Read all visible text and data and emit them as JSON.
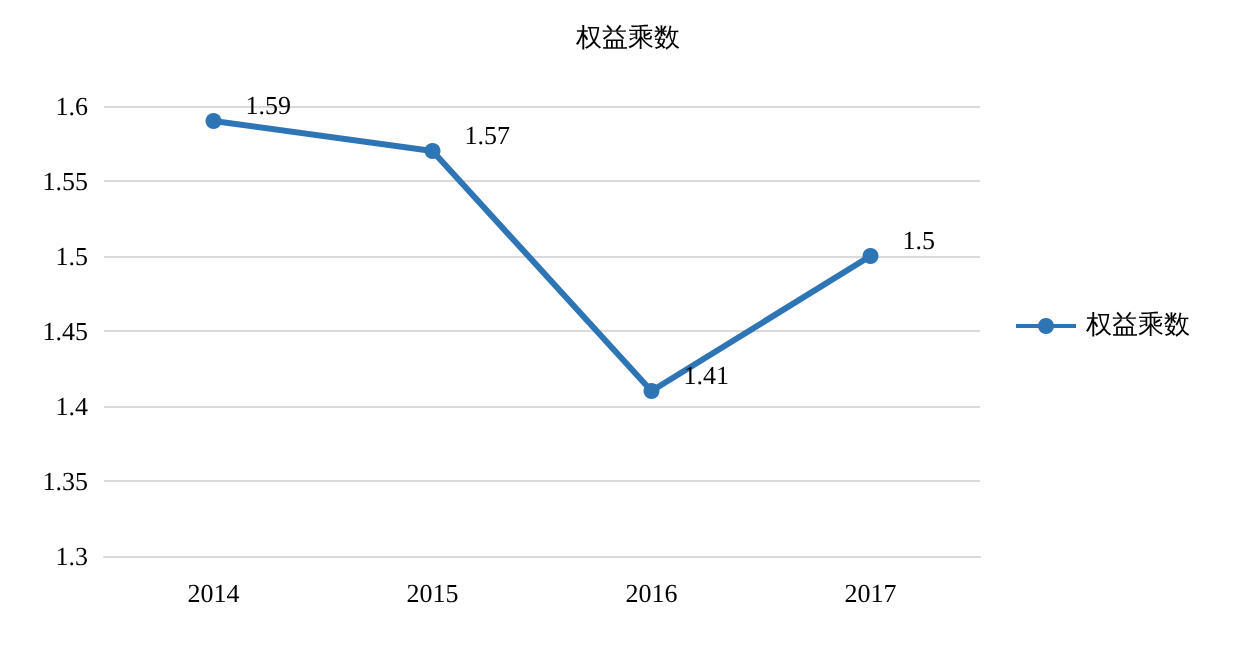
{
  "chart_data": {
    "type": "line",
    "title": "权益乘数",
    "categories": [
      "2014",
      "2015",
      "2016",
      "2017"
    ],
    "series": [
      {
        "name": "权益乘数",
        "color": "#2e75b6",
        "values": [
          1.59,
          1.57,
          1.41,
          1.5
        ]
      }
    ],
    "ylim": [
      1.3,
      1.6
    ],
    "yticks": [
      1.3,
      1.35,
      1.4,
      1.45,
      1.5,
      1.55,
      1.6
    ],
    "grid": "y",
    "legend": "right",
    "marker": "circle",
    "line_style": "solid",
    "data_labels": true
  }
}
